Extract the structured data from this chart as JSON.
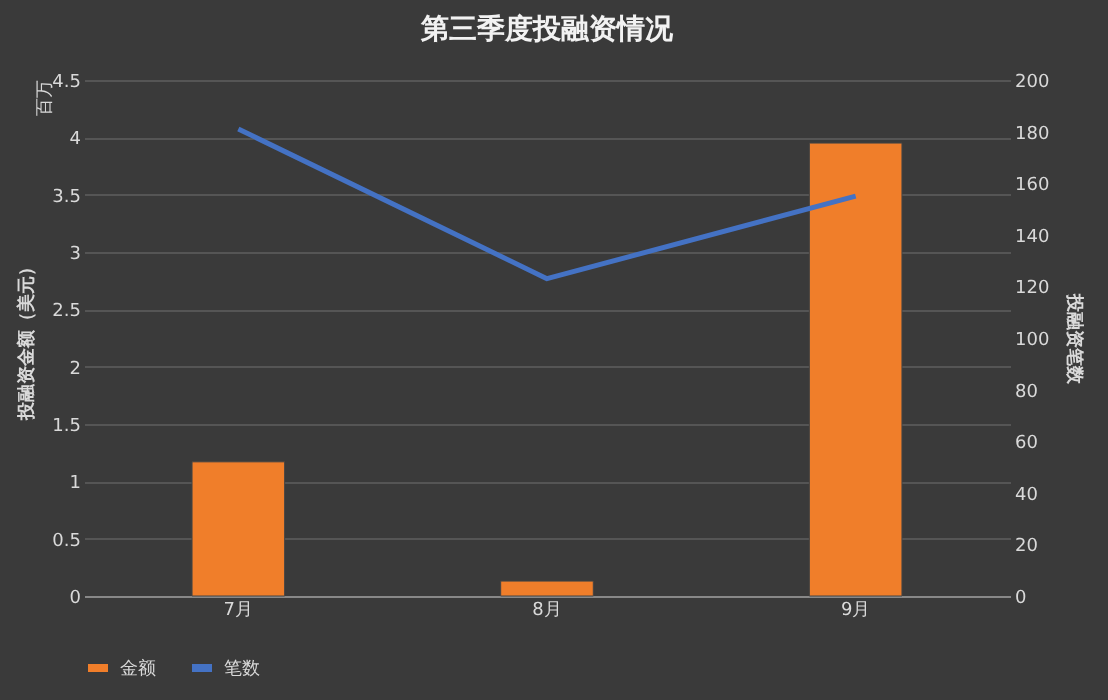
{
  "chart_data": {
    "type": "bar",
    "title": "第三季度投融资情况",
    "ylabel": "投融资金额（美元）",
    "y2label": "投融资笔数",
    "annotations": [
      "百万"
    ],
    "categories": [
      "7月",
      "8月",
      "9月"
    ],
    "series": [
      {
        "name": "金额",
        "color": "#f07e2a",
        "values": [
          1.17,
          0.13,
          3.95
        ]
      },
      {
        "name": "笔数",
        "type": "line",
        "axis": "y2",
        "color": "#4472c4",
        "values": [
          181,
          123,
          155
        ]
      }
    ],
    "ylim": [
      0,
      4.5
    ],
    "yticks": [
      0,
      0.5,
      1,
      1.5,
      2,
      2.5,
      3,
      3.5,
      4,
      4.5
    ],
    "y2lim": [
      0,
      200
    ],
    "y2ticks": [
      0,
      20,
      40,
      60,
      80,
      100,
      120,
      140,
      160,
      180,
      200
    ],
    "grid": "y",
    "legend": "bottom",
    "marker": "none",
    "line_style": "solid"
  }
}
